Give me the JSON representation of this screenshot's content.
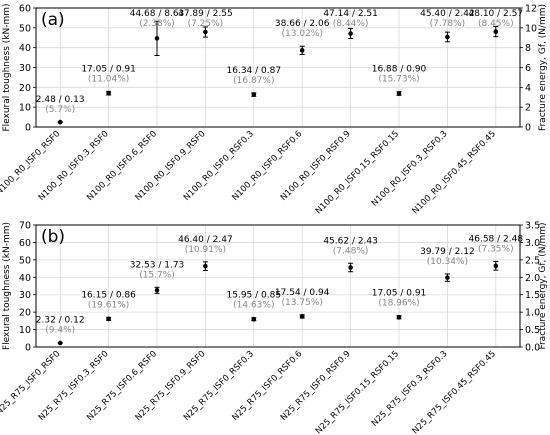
{
  "chart_data": [
    {
      "type": "scatter",
      "panel_label": "(a)",
      "ylabel": "Flexural toughness (kN-mm)",
      "ylabel_right": "Fracture energy, Gf, (N/mm)",
      "ylim": [
        0,
        60
      ],
      "yticks": [
        0,
        10,
        20,
        30,
        40,
        50,
        60
      ],
      "ylim_right": [
        0,
        12
      ],
      "yticks_right": [
        0,
        2,
        4,
        6,
        8,
        10,
        12
      ],
      "grid": true,
      "categories": [
        "N100_R0_ISF0_RSF0",
        "N100_R0_ISF0.3_RSF0",
        "N100_R0_ISF0.6_RSF0",
        "N100_R0_ISF0.9_RSF0",
        "N100_R0_ISF0_RSF0.3",
        "N100_R0_ISF0_RSF0.6",
        "N100_R0_ISF0_RSF0.9",
        "N100_R0_ISF0.15_RSF0.15",
        "N100_R0_ISF0.3_RSF0.3",
        "N100_R0_ISF0.45_RSF0.45"
      ],
      "values": [
        2.48,
        17.05,
        44.68,
        47.89,
        16.34,
        38.66,
        47.14,
        16.88,
        45.4,
        48.1
      ],
      "errors": [
        0.13,
        0.91,
        8.63,
        2.55,
        0.87,
        2.06,
        2.51,
        0.9,
        2.42,
        2.57
      ],
      "labels": [
        "2.48 / 0.13",
        "17.05 / 0.91",
        "44.68 / 8.63",
        "47.89 / 2.55",
        "16.34 / 0.87",
        "38.66 / 2.06",
        "47.14 / 2.51",
        "16.88 / 0.90",
        "45.40 / 2.42",
        "48.10 / 2.57"
      ],
      "cov_labels": [
        "(5.7%)",
        "(11.04%)",
        "(2.38%)",
        "(7.25%)",
        "(16.87%)",
        "(13.02%)",
        "(8.44%)",
        "(15.73%)",
        "(7.78%)",
        "(8.45%)"
      ]
    },
    {
      "type": "scatter",
      "panel_label": "(b)",
      "ylabel": "Flexural toughness (kN-mm)",
      "ylabel_right": "Fracture energy, Gf, (N/mm)",
      "ylim": [
        0,
        70
      ],
      "yticks": [
        0,
        10,
        20,
        30,
        40,
        50,
        60,
        70
      ],
      "ylim_right": [
        0,
        3.5
      ],
      "yticks_right": [
        0.0,
        0.5,
        1.0,
        1.5,
        2.0,
        2.5,
        3.0,
        3.5
      ],
      "grid": true,
      "categories": [
        "N25_R75_ISF0_RSF0",
        "N25_R75_ISF0.3_RSF0",
        "N25_R75_ISF0.6_RSF0",
        "N25_R75_ISF0.9_RSF0",
        "N25_R75_ISF0_RSF0.3",
        "N25_R75_ISF0_RSF0.6",
        "N25_R75_ISF0_RSF0.9",
        "N25_R75_ISF0.15_RSF0.15",
        "N25_R75_ISF0.3_RSF0.3",
        "N25_R75_ISF0.45_RSF0.45"
      ],
      "values": [
        2.32,
        16.15,
        32.53,
        46.4,
        15.95,
        17.54,
        45.62,
        17.05,
        39.79,
        46.58
      ],
      "errors": [
        0.12,
        0.86,
        1.73,
        2.47,
        0.85,
        0.94,
        2.43,
        0.91,
        2.12,
        2.48
      ],
      "labels": [
        "2.32 / 0.12",
        "16.15 / 0.86",
        "32.53 / 1.73",
        "46.40 / 2.47",
        "15.95 / 0.85",
        "17.54 / 0.94",
        "45.62 / 2.43",
        "17.05 / 0.91",
        "39.79 / 2.12",
        "46.58 / 2.48"
      ],
      "cov_labels": [
        "(9.4%)",
        "(19.61%)",
        "(15.7%)",
        "(10.91%)",
        "(14.63%)",
        "(13.75%)",
        "(7.48%)",
        "(18.96%)",
        "(10.34%)",
        "(7.35%)"
      ]
    }
  ]
}
